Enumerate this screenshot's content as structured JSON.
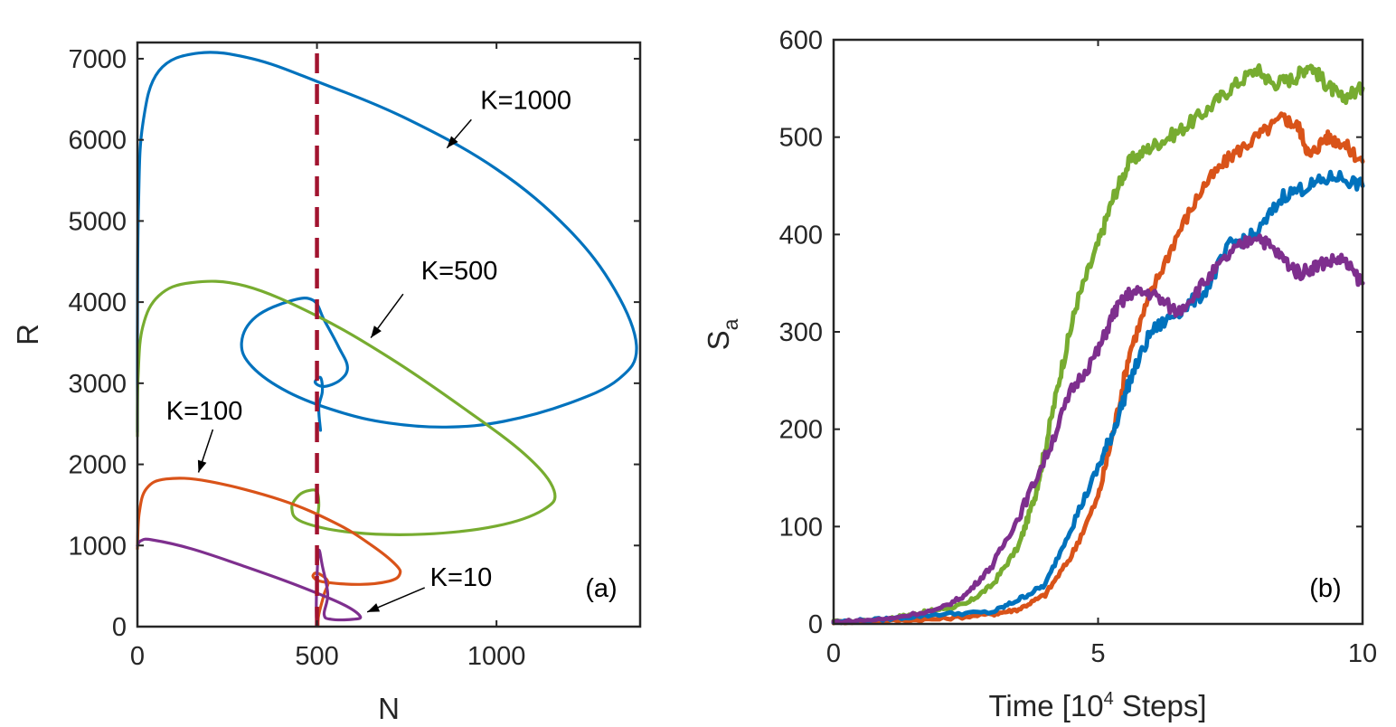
{
  "chart_data": [
    {
      "panel": "(a)",
      "type": "line",
      "xlabel": "N",
      "ylabel": "R",
      "xlim": [
        0,
        1400
      ],
      "ylim": [
        0,
        7200
      ],
      "xticks": [
        0,
        500,
        1000
      ],
      "yticks": [
        0,
        1000,
        2000,
        3000,
        4000,
        5000,
        6000,
        7000
      ],
      "reference_line": {
        "x": 500,
        "style": "dashed",
        "color": "#a2142f"
      },
      "series": [
        {
          "name": "K=1000",
          "color": "#0072bd",
          "points": [
            [
              0,
              2400
            ],
            [
              0,
              3600
            ],
            [
              3,
              5200
            ],
            [
              15,
              6200
            ],
            [
              60,
              6850
            ],
            [
              170,
              7070
            ],
            [
              320,
              7000
            ],
            [
              500,
              6720
            ],
            [
              750,
              6260
            ],
            [
              1000,
              5640
            ],
            [
              1200,
              4900
            ],
            [
              1330,
              4150
            ],
            [
              1390,
              3450
            ],
            [
              1340,
              3050
            ],
            [
              1200,
              2750
            ],
            [
              1020,
              2530
            ],
            [
              860,
              2460
            ],
            [
              700,
              2510
            ],
            [
              560,
              2650
            ],
            [
              420,
              2890
            ],
            [
              320,
              3200
            ],
            [
              290,
              3500
            ],
            [
              330,
              3820
            ],
            [
              430,
              4020
            ],
            [
              490,
              4020
            ],
            [
              520,
              3780
            ],
            [
              560,
              3450
            ],
            [
              585,
              3200
            ],
            [
              565,
              3040
            ],
            [
              520,
              2960
            ],
            [
              495,
              3010
            ],
            [
              510,
              3070
            ],
            [
              515,
              2900
            ],
            [
              505,
              2700
            ],
            [
              510,
              2420
            ]
          ]
        },
        {
          "name": "K=500",
          "color": "#77ac30",
          "points": [
            [
              0,
              2350
            ],
            [
              2,
              3100
            ],
            [
              15,
              3700
            ],
            [
              60,
              4080
            ],
            [
              150,
              4240
            ],
            [
              300,
              4200
            ],
            [
              500,
              3830
            ],
            [
              700,
              3320
            ],
            [
              900,
              2720
            ],
            [
              1080,
              2120
            ],
            [
              1160,
              1680
            ],
            [
              1130,
              1440
            ],
            [
              1000,
              1240
            ],
            [
              800,
              1140
            ],
            [
              600,
              1160
            ],
            [
              460,
              1290
            ],
            [
              430,
              1460
            ],
            [
              450,
              1620
            ],
            [
              480,
              1680
            ],
            [
              500,
              1660
            ],
            [
              505,
              1500
            ],
            [
              500,
              1300
            ],
            [
              502,
              1230
            ]
          ]
        },
        {
          "name": "K=100",
          "color": "#d95319",
          "points": [
            [
              0,
              960
            ],
            [
              5,
              1400
            ],
            [
              25,
              1700
            ],
            [
              80,
              1820
            ],
            [
              200,
              1790
            ],
            [
              400,
              1560
            ],
            [
              550,
              1280
            ],
            [
              650,
              1010
            ],
            [
              720,
              760
            ],
            [
              730,
              640
            ],
            [
              700,
              560
            ],
            [
              620,
              520
            ],
            [
              520,
              550
            ],
            [
              490,
              610
            ],
            [
              500,
              660
            ],
            [
              530,
              560
            ],
            [
              520,
              400
            ],
            [
              505,
              150
            ],
            [
              503,
              20
            ]
          ]
        },
        {
          "name": "K=10",
          "color": "#7e2f8e",
          "points": [
            [
              0,
              1000
            ],
            [
              10,
              1060
            ],
            [
              40,
              1070
            ],
            [
              150,
              960
            ],
            [
              300,
              740
            ],
            [
              450,
              500
            ],
            [
              570,
              280
            ],
            [
              620,
              130
            ],
            [
              600,
              90
            ],
            [
              540,
              90
            ],
            [
              520,
              150
            ],
            [
              530,
              400
            ],
            [
              515,
              750
            ],
            [
              505,
              940
            ],
            [
              500,
              600
            ],
            [
              498,
              200
            ],
            [
              500,
              20
            ]
          ]
        }
      ],
      "annotations": [
        {
          "text": "K=1000",
          "label_xy": [
            955,
            6380
          ],
          "arrow_from": [
            930,
            6250
          ],
          "arrow_to": [
            862,
            5900
          ]
        },
        {
          "text": "K=500",
          "label_xy": [
            790,
            4280
          ],
          "arrow_from": [
            740,
            4100
          ],
          "arrow_to": [
            650,
            3560
          ]
        },
        {
          "text": "K=100",
          "label_xy": [
            80,
            2550
          ],
          "arrow_from": [
            210,
            2430
          ],
          "arrow_to": [
            170,
            1900
          ]
        },
        {
          "text": "K=10",
          "label_xy": [
            815,
            500
          ],
          "arrow_from": [
            800,
            480
          ],
          "arrow_to": [
            640,
            180
          ]
        }
      ]
    },
    {
      "panel": "(b)",
      "type": "line",
      "xlabel_prefix": "Time [10",
      "xlabel_sup": "4",
      "xlabel_suffix": " Steps]",
      "ylabel_main": "S",
      "ylabel_sub": "a",
      "xlim": [
        0,
        10
      ],
      "ylim": [
        0,
        600
      ],
      "xticks": [
        0,
        5,
        10
      ],
      "yticks": [
        0,
        100,
        200,
        300,
        400,
        500,
        600
      ],
      "series": [
        {
          "name": "green",
          "color": "#77ac30",
          "points": [
            [
              0,
              2
            ],
            [
              1,
              5
            ],
            [
              1.5,
              10
            ],
            [
              2,
              15
            ],
            [
              2.5,
              20
            ],
            [
              3,
              40
            ],
            [
              3.5,
              80
            ],
            [
              3.8,
              130
            ],
            [
              4,
              180
            ],
            [
              4.3,
              260
            ],
            [
              4.6,
              330
            ],
            [
              5,
              390
            ],
            [
              5.3,
              440
            ],
            [
              5.6,
              475
            ],
            [
              6,
              490
            ],
            [
              6.5,
              505
            ],
            [
              7,
              525
            ],
            [
              7.5,
              550
            ],
            [
              8,
              570
            ],
            [
              8.3,
              555
            ],
            [
              8.7,
              560
            ],
            [
              9,
              575
            ],
            [
              9.3,
              555
            ],
            [
              9.6,
              540
            ],
            [
              10,
              550
            ]
          ]
        },
        {
          "name": "orange",
          "color": "#d95319",
          "points": [
            [
              0,
              2
            ],
            [
              1,
              3
            ],
            [
              2,
              5
            ],
            [
              3,
              10
            ],
            [
              3.5,
              15
            ],
            [
              4,
              30
            ],
            [
              4.5,
              70
            ],
            [
              5,
              130
            ],
            [
              5.3,
              200
            ],
            [
              5.6,
              280
            ],
            [
              6,
              340
            ],
            [
              6.5,
              400
            ],
            [
              7,
              450
            ],
            [
              7.5,
              480
            ],
            [
              8,
              500
            ],
            [
              8.5,
              520
            ],
            [
              8.8,
              510
            ],
            [
              9,
              480
            ],
            [
              9.3,
              500
            ],
            [
              9.6,
              495
            ],
            [
              10,
              475
            ]
          ]
        },
        {
          "name": "blue",
          "color": "#0072bd",
          "points": [
            [
              0,
              2
            ],
            [
              1,
              5
            ],
            [
              2,
              10
            ],
            [
              3,
              12
            ],
            [
              3.5,
              25
            ],
            [
              4,
              40
            ],
            [
              4.5,
              100
            ],
            [
              5,
              160
            ],
            [
              5.3,
              200
            ],
            [
              5.6,
              250
            ],
            [
              6,
              300
            ],
            [
              6.5,
              320
            ],
            [
              7,
              340
            ],
            [
              7.5,
              390
            ],
            [
              8,
              400
            ],
            [
              8.5,
              440
            ],
            [
              9,
              450
            ],
            [
              9.5,
              460
            ],
            [
              10,
              450
            ]
          ]
        },
        {
          "name": "purple",
          "color": "#7e2f8e",
          "points": [
            [
              0,
              2
            ],
            [
              1,
              5
            ],
            [
              2,
              15
            ],
            [
              2.5,
              30
            ],
            [
              3,
              60
            ],
            [
              3.5,
              110
            ],
            [
              4,
              170
            ],
            [
              4.5,
              240
            ],
            [
              5,
              280
            ],
            [
              5.3,
              320
            ],
            [
              5.6,
              340
            ],
            [
              6,
              340
            ],
            [
              6.5,
              320
            ],
            [
              7,
              350
            ],
            [
              7.5,
              380
            ],
            [
              8,
              400
            ],
            [
              8.4,
              380
            ],
            [
              8.8,
              360
            ],
            [
              9.2,
              370
            ],
            [
              9.6,
              375
            ],
            [
              10,
              350
            ]
          ]
        }
      ]
    }
  ]
}
